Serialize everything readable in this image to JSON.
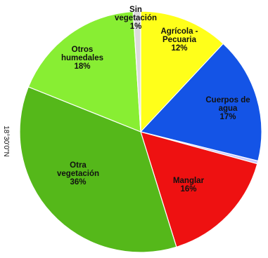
{
  "side_label": "18°30'0\"N",
  "chart_data": {
    "type": "pie",
    "start_angle_deg": 0,
    "direction": "clockwise",
    "slices": [
      {
        "label_lines": [
          "Agrícola -",
          "Pecuaria"
        ],
        "pct_text": "12%",
        "value": 12,
        "color": "#ffff1a"
      },
      {
        "label_lines": [
          "Cuerpos de",
          "agua"
        ],
        "pct_text": "17%",
        "value": 17,
        "color": "#1454e6"
      },
      {
        "label_lines": [],
        "pct_text": "",
        "value": 0.4,
        "color": "#c8c8ff"
      },
      {
        "label_lines": [
          "Manglar"
        ],
        "pct_text": "16%",
        "value": 16,
        "color": "#ee1111"
      },
      {
        "label_lines": [
          "Otra",
          "vegetación"
        ],
        "pct_text": "36%",
        "value": 36,
        "color": "#55b81a"
      },
      {
        "label_lines": [
          "Otros",
          "humedales"
        ],
        "pct_text": "18%",
        "value": 18,
        "color": "#88ee33"
      },
      {
        "label_lines": [
          "Sin",
          "vegetación"
        ],
        "pct_text": "1%",
        "value": 1,
        "color": "#dcdcdc"
      }
    ]
  }
}
